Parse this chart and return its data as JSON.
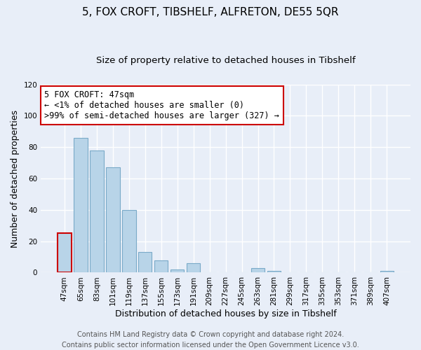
{
  "title": "5, FOX CROFT, TIBSHELF, ALFRETON, DE55 5QR",
  "subtitle": "Size of property relative to detached houses in Tibshelf",
  "xlabel": "Distribution of detached houses by size in Tibshelf",
  "ylabel": "Number of detached properties",
  "bar_labels": [
    "47sqm",
    "65sqm",
    "83sqm",
    "101sqm",
    "119sqm",
    "137sqm",
    "155sqm",
    "173sqm",
    "191sqm",
    "209sqm",
    "227sqm",
    "245sqm",
    "263sqm",
    "281sqm",
    "299sqm",
    "317sqm",
    "335sqm",
    "353sqm",
    "371sqm",
    "389sqm",
    "407sqm"
  ],
  "bar_values": [
    25,
    86,
    78,
    67,
    40,
    13,
    8,
    2,
    6,
    0,
    0,
    0,
    3,
    1,
    0,
    0,
    0,
    0,
    0,
    0,
    1
  ],
  "bar_color": "#b8d4e8",
  "bar_edge_color": "#7aaac8",
  "highlight_bar_index": 0,
  "highlight_bar_edge_color": "#cc0000",
  "ylim": [
    0,
    120
  ],
  "yticks": [
    0,
    20,
    40,
    60,
    80,
    100,
    120
  ],
  "annotation_line1": "5 FOX CROFT: 47sqm",
  "annotation_line2": "← <1% of detached houses are smaller (0)",
  "annotation_line3": ">99% of semi-detached houses are larger (327) →",
  "annotation_box_edge_color": "#cc0000",
  "annotation_box_face_color": "#ffffff",
  "footer_line1": "Contains HM Land Registry data © Crown copyright and database right 2024.",
  "footer_line2": "Contains public sector information licensed under the Open Government Licence v3.0.",
  "background_color": "#e8eef8",
  "plot_bg_color": "#e8eef8",
  "grid_color": "#ffffff",
  "title_fontsize": 11,
  "subtitle_fontsize": 9.5,
  "axis_label_fontsize": 9,
  "tick_fontsize": 7.5,
  "footer_fontsize": 7,
  "annotation_fontsize": 8.5
}
